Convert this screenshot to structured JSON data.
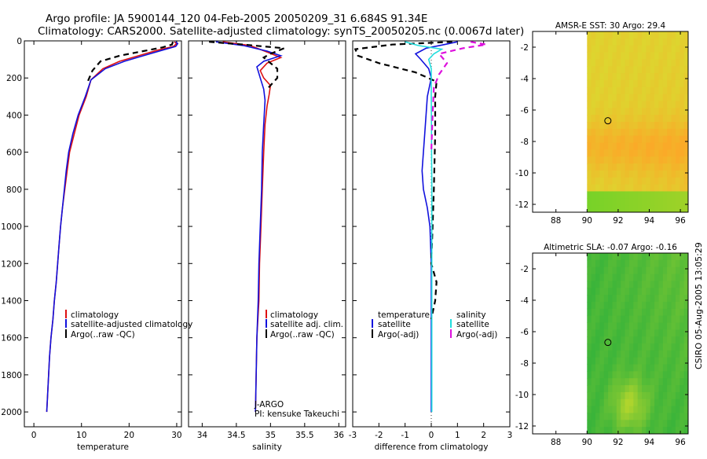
{
  "header": {
    "line1": "Argo profile: JA 5900144_120 04-Feb-2005 20050209_31 6.684S 91.34E",
    "line2": "Climatology: CARS2000. Satellite-adjusted climatology: synTS_20050205.nc (0.0067d later)"
  },
  "credit": "CSIRO 05-Aug-2005 13:05:29",
  "colors": {
    "climatology": "#dd1111",
    "satellite": "#1111dd",
    "argo": "#000000",
    "sal_sat": "#22dddd",
    "sal_argo": "#dd11dd"
  },
  "chart_data": [
    {
      "type": "line",
      "title": "",
      "xlabel": "temperature",
      "ylabel": "",
      "xlim": [
        -2,
        31
      ],
      "ylim": [
        2080,
        0
      ],
      "xticks": [
        0,
        10,
        20,
        30
      ],
      "yticks": [
        0,
        200,
        400,
        600,
        800,
        1000,
        1200,
        1400,
        1600,
        1800,
        2000
      ],
      "legend": [
        "climatology",
        "satellite-adjusted climatology",
        "Argo(..raw -QC)"
      ],
      "series": [
        {
          "name": "climatology",
          "color": "#dd1111",
          "dash": "",
          "points": [
            [
              29.5,
              5
            ],
            [
              30,
              15
            ],
            [
              29.3,
              30
            ],
            [
              26,
              50
            ],
            [
              22,
              80
            ],
            [
              18,
              110
            ],
            [
              14.5,
              150
            ],
            [
              12,
              210
            ],
            [
              11,
              300
            ],
            [
              9.5,
              400
            ],
            [
              8.5,
              500
            ],
            [
              7.5,
              600
            ],
            [
              7,
              700
            ],
            [
              6.5,
              800
            ],
            [
              6,
              900
            ],
            [
              5.6,
              1000
            ],
            [
              5.3,
              1100
            ],
            [
              5,
              1200
            ],
            [
              4.7,
              1300
            ],
            [
              4.3,
              1400
            ],
            [
              4,
              1500
            ],
            [
              3.6,
              1600
            ],
            [
              3.3,
              1700
            ],
            [
              3.1,
              1800
            ],
            [
              2.9,
              1900
            ],
            [
              2.7,
              2000
            ]
          ]
        },
        {
          "name": "satellite-adjusted climatology",
          "color": "#1111dd",
          "dash": "",
          "points": [
            [
              29.8,
              5
            ],
            [
              30.2,
              15
            ],
            [
              29.8,
              30
            ],
            [
              27,
              50
            ],
            [
              23,
              80
            ],
            [
              19,
              110
            ],
            [
              15,
              150
            ],
            [
              12,
              210
            ],
            [
              10.8,
              300
            ],
            [
              9.3,
              400
            ],
            [
              8.2,
              500
            ],
            [
              7.3,
              600
            ],
            [
              6.8,
              700
            ],
            [
              6.4,
              800
            ],
            [
              6,
              900
            ],
            [
              5.6,
              1000
            ],
            [
              5.3,
              1100
            ],
            [
              5,
              1200
            ],
            [
              4.7,
              1300
            ],
            [
              4.3,
              1400
            ],
            [
              4,
              1500
            ],
            [
              3.6,
              1600
            ],
            [
              3.3,
              1700
            ],
            [
              3.1,
              1800
            ],
            [
              2.9,
              1900
            ],
            [
              2.7,
              2000
            ]
          ]
        },
        {
          "name": "Argo(..raw -QC)",
          "color": "#000000",
          "dash": "7,5",
          "points": [
            [
              29.2,
              5
            ],
            [
              29,
              20
            ],
            [
              27,
              35
            ],
            [
              23,
              55
            ],
            [
              18,
              80
            ],
            [
              14,
              110
            ],
            [
              12.3,
              160
            ],
            [
              11.3,
              220
            ]
          ]
        }
      ],
      "annotations": []
    },
    {
      "type": "line",
      "title": "",
      "xlabel": "salinity",
      "ylabel": "",
      "xlim": [
        33.8,
        36.1
      ],
      "ylim": [
        2080,
        0
      ],
      "xticks": [
        34,
        34.5,
        35,
        35.5,
        36
      ],
      "xticklabels": [
        "34",
        "34.5",
        "35",
        "35.5",
        "36"
      ],
      "legend": [
        "climatology",
        "satellite adj. clim.",
        "Argo(..raw -QC)"
      ],
      "series": [
        {
          "name": "climatology",
          "color": "#dd1111",
          "dash": "",
          "points": [
            [
              34.3,
              5
            ],
            [
              34.7,
              25
            ],
            [
              34.95,
              60
            ],
            [
              35.15,
              90
            ],
            [
              34.95,
              120
            ],
            [
              34.85,
              160
            ],
            [
              34.9,
              200
            ],
            [
              35,
              240
            ],
            [
              34.98,
              290
            ],
            [
              34.95,
              350
            ],
            [
              34.92,
              450
            ],
            [
              34.9,
              600
            ],
            [
              34.88,
              800
            ],
            [
              34.86,
              1000
            ],
            [
              34.84,
              1200
            ],
            [
              34.83,
              1400
            ],
            [
              34.8,
              1600
            ],
            [
              34.79,
              1800
            ],
            [
              34.78,
              2000
            ]
          ]
        },
        {
          "name": "satellite adj. clim.",
          "color": "#1111dd",
          "dash": "",
          "points": [
            [
              34.2,
              5
            ],
            [
              34.6,
              25
            ],
            [
              34.95,
              55
            ],
            [
              35.15,
              80
            ],
            [
              34.9,
              110
            ],
            [
              34.8,
              140
            ],
            [
              34.85,
              200
            ],
            [
              34.9,
              260
            ],
            [
              34.92,
              320
            ],
            [
              34.9,
              450
            ],
            [
              34.88,
              600
            ],
            [
              34.87,
              800
            ],
            [
              34.85,
              1000
            ],
            [
              34.83,
              1200
            ],
            [
              34.82,
              1400
            ],
            [
              34.8,
              1600
            ],
            [
              34.79,
              1800
            ],
            [
              34.78,
              2000
            ]
          ]
        },
        {
          "name": "Argo(..raw -QC)",
          "color": "#000000",
          "dash": "7,5",
          "points": [
            [
              34.1,
              5
            ],
            [
              34.6,
              20
            ],
            [
              35.2,
              40
            ],
            [
              35,
              70
            ],
            [
              34.9,
              90
            ],
            [
              35.1,
              150
            ],
            [
              35.1,
              200
            ],
            [
              34.95,
              260
            ]
          ]
        }
      ],
      "annotations": [
        "J-ARGO",
        "PI: kensuke Takeuchi"
      ]
    },
    {
      "type": "line",
      "title": "",
      "xlabel": "difference from climatology",
      "ylabel": "",
      "xlim": [
        -3,
        3
      ],
      "ylim": [
        2080,
        0
      ],
      "xticks": [
        -3,
        -2,
        -1,
        0,
        1,
        2,
        3
      ],
      "legend": [
        "temperature",
        "satellite",
        "Argo(-adj)",
        "salinity",
        "satellite",
        "Argo(-adj)"
      ],
      "series": [
        {
          "name": "temperature satellite",
          "color": "#1111dd",
          "dash": "",
          "points": [
            [
              1,
              5
            ],
            [
              0.5,
              20
            ],
            [
              -0.2,
              40
            ],
            [
              -0.6,
              70
            ],
            [
              -0.4,
              100
            ],
            [
              -0.1,
              150
            ],
            [
              0,
              200
            ],
            [
              -0.15,
              300
            ],
            [
              -0.25,
              500
            ],
            [
              -0.35,
              700
            ],
            [
              -0.3,
              800
            ],
            [
              -0.15,
              900
            ],
            [
              -0.05,
              1000
            ],
            [
              0,
              1200
            ],
            [
              0,
              2000
            ]
          ]
        },
        {
          "name": "temperature Argo(-adj)",
          "color": "#000000",
          "dash": "7,5",
          "points": [
            [
              0.8,
              5
            ],
            [
              -1.5,
              20
            ],
            [
              -2.9,
              45
            ],
            [
              -2.8,
              80
            ],
            [
              -2,
              120
            ],
            [
              -0.6,
              170
            ],
            [
              0.2,
              220
            ],
            [
              0.15,
              300
            ],
            [
              0.15,
              500
            ],
            [
              0.1,
              800
            ],
            [
              0.05,
              1000
            ],
            [
              0,
              1200
            ],
            [
              0.2,
              1300
            ],
            [
              0.15,
              1400
            ],
            [
              0,
              1500
            ]
          ]
        },
        {
          "name": "salinity satellite",
          "color": "#22dddd",
          "dash": "",
          "points": [
            [
              -1,
              5
            ],
            [
              -0.5,
              25
            ],
            [
              0.4,
              45
            ],
            [
              0.1,
              70
            ],
            [
              -0.1,
              100
            ],
            [
              0,
              150
            ],
            [
              0,
              300
            ],
            [
              0.02,
              800
            ],
            [
              0.02,
              1200
            ],
            [
              0.02,
              2000
            ]
          ]
        },
        {
          "name": "salinity Argo(-adj)",
          "color": "#dd11dd",
          "dash": "7,5",
          "points": [
            [
              1.5,
              5
            ],
            [
              2.1,
              20
            ],
            [
              1.2,
              40
            ],
            [
              0.3,
              70
            ],
            [
              0.6,
              120
            ],
            [
              0.3,
              180
            ],
            [
              0.1,
              250
            ],
            [
              0.05,
              400
            ],
            [
              0,
              600
            ]
          ]
        }
      ],
      "annotations": []
    },
    {
      "type": "heatmap",
      "title": "AMSR-E SST: 30 Argo: 29.4",
      "xlabel": "",
      "ylabel": "",
      "xlim": [
        86.5,
        96.5
      ],
      "ylim": [
        -12.5,
        -1
      ],
      "xticks": [
        88,
        90,
        92,
        94,
        96
      ],
      "yticks": [
        -2,
        -4,
        -6,
        -8,
        -10,
        -12
      ],
      "marker": [
        91.34,
        -6.684
      ]
    },
    {
      "type": "heatmap",
      "title": "Altimetric SLA: -0.07 Argo: -0.16",
      "xlabel": "",
      "ylabel": "",
      "xlim": [
        86.5,
        96.5
      ],
      "ylim": [
        -12.5,
        -1
      ],
      "xticks": [
        88,
        90,
        92,
        94,
        96
      ],
      "yticks": [
        -2,
        -4,
        -6,
        -8,
        -10,
        -12
      ],
      "marker": [
        91.34,
        -6.684
      ]
    }
  ]
}
